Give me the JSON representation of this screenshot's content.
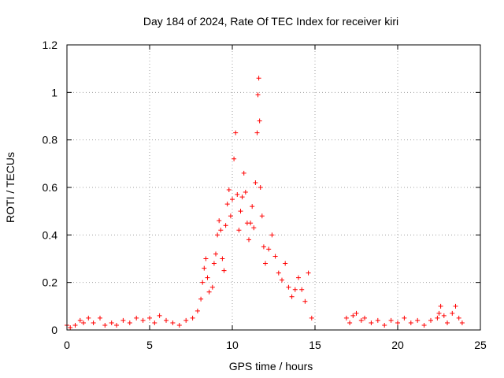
{
  "chart_data": {
    "type": "scatter",
    "title": "Day 184 of 2024, Rate Of TEC Index for receiver kiri",
    "xlabel": "GPS time / hours",
    "ylabel": "ROTI / TECUs",
    "xlim": [
      0,
      25
    ],
    "ylim": [
      0,
      1.2
    ],
    "x_ticks": [
      0,
      5,
      10,
      15,
      20,
      25
    ],
    "x_tick_labels": [
      "0",
      "5",
      "10",
      "15",
      "20",
      "25"
    ],
    "y_ticks": [
      0,
      0.2,
      0.4,
      0.6,
      0.8,
      1.0,
      1.2
    ],
    "y_tick_labels": [
      "0",
      "0.2",
      "0.4",
      "0.6",
      "0.8",
      "1",
      "1.2"
    ],
    "grid": true,
    "marker": "plus",
    "color": "#ff0000",
    "series": [
      {
        "points": [
          [
            0.0,
            0.02
          ],
          [
            0.2,
            0.01
          ],
          [
            0.5,
            0.02
          ],
          [
            0.8,
            0.04
          ],
          [
            1.0,
            0.03
          ],
          [
            1.3,
            0.05
          ],
          [
            1.6,
            0.03
          ],
          [
            2.0,
            0.05
          ],
          [
            2.3,
            0.02
          ],
          [
            2.7,
            0.03
          ],
          [
            3.0,
            0.02
          ],
          [
            3.4,
            0.04
          ],
          [
            3.8,
            0.03
          ],
          [
            4.2,
            0.05
          ],
          [
            4.6,
            0.04
          ],
          [
            5.0,
            0.05
          ],
          [
            5.3,
            0.03
          ],
          [
            5.6,
            0.06
          ],
          [
            6.0,
            0.04
          ],
          [
            6.4,
            0.03
          ],
          [
            6.8,
            0.02
          ],
          [
            7.2,
            0.04
          ],
          [
            7.6,
            0.05
          ],
          [
            7.9,
            0.08
          ],
          [
            8.1,
            0.13
          ],
          [
            8.2,
            0.2
          ],
          [
            8.3,
            0.26
          ],
          [
            8.4,
            0.3
          ],
          [
            8.5,
            0.22
          ],
          [
            8.6,
            0.16
          ],
          [
            8.8,
            0.18
          ],
          [
            8.9,
            0.28
          ],
          [
            9.0,
            0.32
          ],
          [
            9.1,
            0.4
          ],
          [
            9.2,
            0.46
          ],
          [
            9.3,
            0.42
          ],
          [
            9.4,
            0.3
          ],
          [
            9.5,
            0.25
          ],
          [
            9.6,
            0.44
          ],
          [
            9.7,
            0.53
          ],
          [
            9.8,
            0.59
          ],
          [
            9.9,
            0.48
          ],
          [
            10.0,
            0.55
          ],
          [
            10.1,
            0.72
          ],
          [
            10.2,
            0.83
          ],
          [
            10.3,
            0.57
          ],
          [
            10.4,
            0.42
          ],
          [
            10.5,
            0.5
          ],
          [
            10.6,
            0.56
          ],
          [
            10.7,
            0.66
          ],
          [
            10.8,
            0.58
          ],
          [
            10.9,
            0.45
          ],
          [
            11.0,
            0.38
          ],
          [
            11.1,
            0.45
          ],
          [
            11.2,
            0.52
          ],
          [
            11.3,
            0.43
          ],
          [
            11.4,
            0.62
          ],
          [
            11.5,
            0.83
          ],
          [
            11.55,
            0.99
          ],
          [
            11.6,
            1.06
          ],
          [
            11.65,
            0.88
          ],
          [
            11.7,
            0.6
          ],
          [
            11.8,
            0.48
          ],
          [
            11.9,
            0.35
          ],
          [
            12.0,
            0.28
          ],
          [
            12.2,
            0.34
          ],
          [
            12.4,
            0.4
          ],
          [
            12.6,
            0.31
          ],
          [
            12.8,
            0.24
          ],
          [
            13.0,
            0.21
          ],
          [
            13.2,
            0.28
          ],
          [
            13.4,
            0.18
          ],
          [
            13.6,
            0.14
          ],
          [
            13.8,
            0.17
          ],
          [
            14.0,
            0.22
          ],
          [
            14.2,
            0.17
          ],
          [
            14.4,
            0.12
          ],
          [
            14.6,
            0.24
          ],
          [
            14.8,
            0.05
          ],
          [
            16.9,
            0.05
          ],
          [
            17.1,
            0.03
          ],
          [
            17.3,
            0.06
          ],
          [
            17.5,
            0.07
          ],
          [
            17.8,
            0.04
          ],
          [
            18.0,
            0.05
          ],
          [
            18.4,
            0.03
          ],
          [
            18.8,
            0.04
          ],
          [
            19.2,
            0.02
          ],
          [
            19.6,
            0.04
          ],
          [
            20.0,
            0.03
          ],
          [
            20.4,
            0.05
          ],
          [
            20.8,
            0.03
          ],
          [
            21.2,
            0.04
          ],
          [
            21.6,
            0.02
          ],
          [
            22.0,
            0.04
          ],
          [
            22.4,
            0.05
          ],
          [
            22.5,
            0.07
          ],
          [
            22.6,
            0.1
          ],
          [
            22.8,
            0.06
          ],
          [
            23.0,
            0.03
          ],
          [
            23.3,
            0.07
          ],
          [
            23.5,
            0.1
          ],
          [
            23.7,
            0.05
          ],
          [
            23.9,
            0.03
          ]
        ]
      }
    ]
  }
}
